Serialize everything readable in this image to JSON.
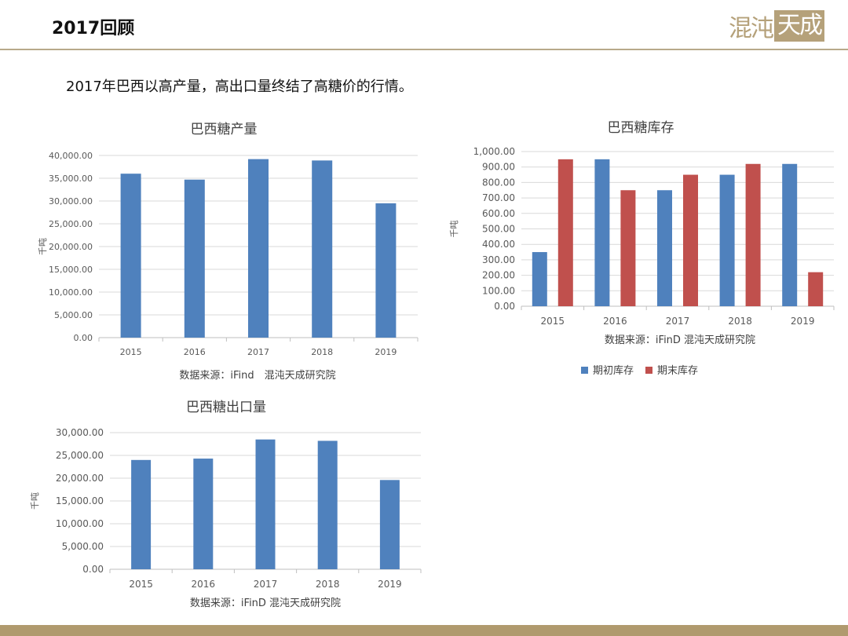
{
  "header": {
    "title": "2017回顾",
    "logo_left": "混沌",
    "logo_right": "天成"
  },
  "subtitle": "2017年巴西以高产量，高出口量终结了高糖价的行情。",
  "colors": {
    "blue": "#4f81bd",
    "red": "#c0504d",
    "gold": "#b09a6e",
    "grid": "#d9d9d9",
    "axis_text": "#595959"
  },
  "chart_data": [
    {
      "id": "production",
      "type": "bar",
      "title": "巴西糖产量",
      "ylabel": "千吨",
      "source": "数据来源：iFind　混沌天成研究院",
      "categories": [
        "2015",
        "2016",
        "2017",
        "2018",
        "2019"
      ],
      "ylim": [
        0,
        40000
      ],
      "ytick_labels": [
        "0.00",
        "5,000.00",
        "10,000.00",
        "15,000.00",
        "20,000.00",
        "25,000.00",
        "30,000.00",
        "35,000.00",
        "40,000.00"
      ],
      "series": [
        {
          "values": [
            36000,
            34700,
            39200,
            38900,
            29500
          ],
          "color": "#4f81bd"
        }
      ],
      "grid": true
    },
    {
      "id": "inventory",
      "type": "bar",
      "title": "巴西糖库存",
      "ylabel": "千吨",
      "source": "数据来源：iFinD 混沌天成研究院",
      "categories": [
        "2015",
        "2016",
        "2017",
        "2018",
        "2019"
      ],
      "ylim": [
        0,
        1000
      ],
      "ytick_labels": [
        "0.00",
        "100.00",
        "200.00",
        "300.00",
        "400.00",
        "500.00",
        "600.00",
        "700.00",
        "800.00",
        "900.00",
        "1,000.00"
      ],
      "series": [
        {
          "name": "期初库存",
          "values": [
            350,
            950,
            750,
            850,
            920
          ],
          "color": "#4f81bd"
        },
        {
          "name": "期末库存",
          "values": [
            950,
            750,
            850,
            920,
            220
          ],
          "color": "#c0504d"
        }
      ],
      "legend": "bottom",
      "grid": true
    },
    {
      "id": "export",
      "type": "bar",
      "title": "巴西糖出口量",
      "ylabel": "千吨",
      "source": "数据来源：iFinD 混沌天成研究院",
      "categories": [
        "2015",
        "2016",
        "2017",
        "2018",
        "2019"
      ],
      "ylim": [
        0,
        30000
      ],
      "ytick_labels": [
        "0.00",
        "5,000.00",
        "10,000.00",
        "15,000.00",
        "20,000.00",
        "25,000.00",
        "30,000.00"
      ],
      "series": [
        {
          "values": [
            24000,
            24300,
            28500,
            28200,
            19600
          ],
          "color": "#4f81bd"
        }
      ],
      "grid": true
    }
  ]
}
